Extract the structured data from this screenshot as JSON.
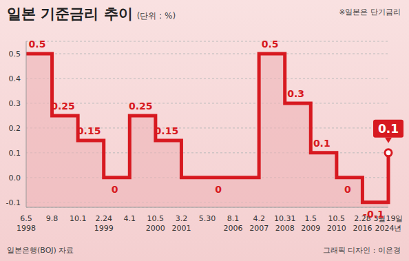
{
  "chart_data": {
    "type": "line",
    "title": "일본 기준금리 추이",
    "subtitle": "(단위 : %)",
    "note": "※일본은 단기금리",
    "source": "일본은행(BOJ) 자료",
    "credit": "그래픽 디자인 : 이은경",
    "categories": [
      "6.5\n1998",
      "9.8",
      "10.1",
      "2.24\n1999",
      "4.1",
      "10.5\n2000",
      "3.2\n2001",
      "5.30",
      "8.1\n2006",
      "4.2\n2007",
      "10.31\n2008",
      "1.5\n2009",
      "10.5\n2010",
      "2.28\n2016",
      "3월19일\n2024년"
    ],
    "values": [
      0.5,
      0.25,
      0.15,
      0,
      0.25,
      0.15,
      0,
      0,
      0,
      0.5,
      0.3,
      0.1,
      0,
      -0.1,
      0.1
    ],
    "value_labels": [
      "0.5",
      "0.25",
      "0.15",
      "0",
      "0.25",
      "0.15",
      null,
      "0",
      null,
      "0.5",
      "0.3",
      "0.1",
      "0",
      "-0.1",
      "0.1"
    ],
    "data_labels": true,
    "line_style": "step",
    "color": "#d71920",
    "ylim": [
      -0.12,
      0.55
    ],
    "yticks": [
      -0.1,
      {
        "value": 0,
        "label": "0.0"
      },
      0.1,
      0.2,
      0.3,
      0.4,
      0.5
    ],
    "grid": true
  }
}
